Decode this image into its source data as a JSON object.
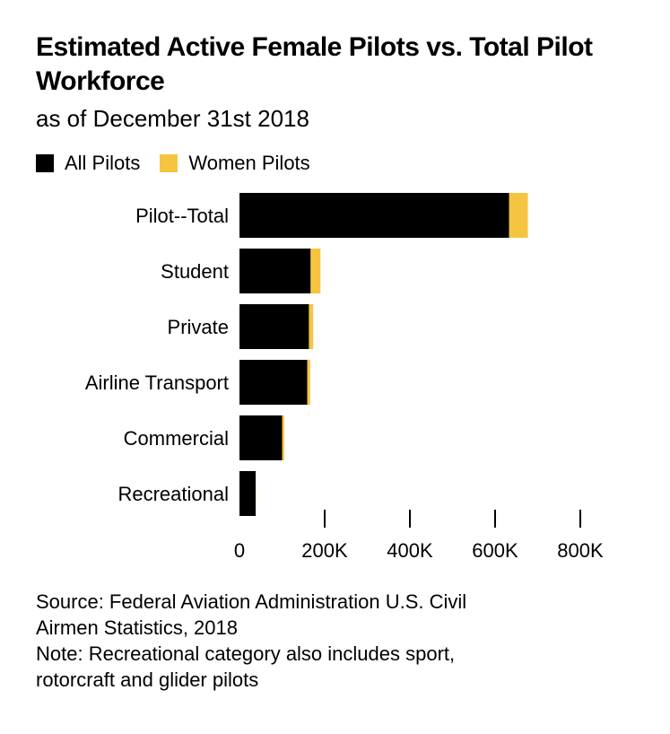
{
  "chart_data": {
    "type": "bar",
    "orientation": "horizontal",
    "stacked": true,
    "title": "Estimated Active Female Pilots vs. Total Pilot Workforce",
    "subtitle": "as of December 31st 2018",
    "categories": [
      "Pilot--Total",
      "Student",
      "Private",
      "Airline Transport",
      "Commercial",
      "Recreational"
    ],
    "series": [
      {
        "name": "All Pilots",
        "color": "#000000",
        "values": [
          633000,
          167000,
          163000,
          159000,
          100000,
          38000
        ]
      },
      {
        "name": "Women Pilots",
        "color": "#f5c542",
        "values": [
          44000,
          23000,
          10000,
          7000,
          5000,
          500
        ]
      }
    ],
    "xlim": [
      0,
      800000
    ],
    "xticks": [
      0,
      200000,
      400000,
      600000,
      800000
    ],
    "xtick_labels": [
      "0",
      "200K",
      "400K",
      "600K",
      "800K"
    ],
    "legend_position": "top-left"
  },
  "footer": {
    "source_line1": "Source: Federal Aviation Administration U.S. Civil",
    "source_line2": "Airmen Statistics, 2018",
    "note_line1": "Note: Recreational category also includes sport,",
    "note_line2": "rotorcraft and glider pilots"
  }
}
